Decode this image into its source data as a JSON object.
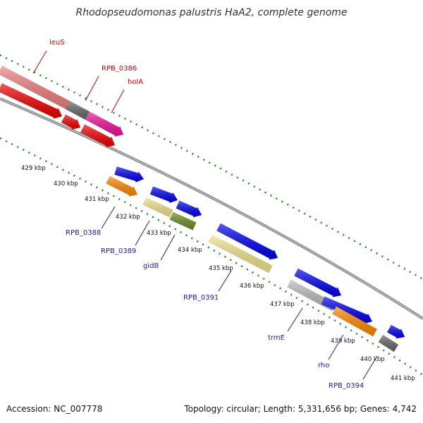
{
  "title": "Rhodopseudomonas palustris HaA2, complete genome",
  "footer": {
    "accession": "Accession: NC_007778",
    "topology": "Topology: circular; Length: 5,331,656 bp; Genes: 4,742"
  },
  "ticks": [
    "429 kbp",
    "430 kbp",
    "431 kbp",
    "432 kbp",
    "433 kbp",
    "434 kbp",
    "435 kbp",
    "436 kbp",
    "437 kbp",
    "438 kbp",
    "439 kbp",
    "440 kbp",
    "441 kbp"
  ],
  "gene_labels": {
    "top": [
      "leuS",
      "RPB_0386",
      "holA"
    ],
    "bottom": [
      "RPB_0388",
      "RPB_0389",
      "gidB",
      "RPB_0391",
      "trmE",
      "rho",
      "RPB_0394"
    ]
  },
  "colors": {
    "red": "#ee0000",
    "light_red": "#f08080",
    "magenta": "#ee1199",
    "dark_gray": "#666666",
    "blue": "#0000ee",
    "orange": "#ff8800",
    "pale_yellow": "#f0e68c",
    "olive": "#6b8e23",
    "light_gray": "#bbbbbb",
    "backbone": "#888888",
    "dots": "#228b22",
    "top_label": "#cc0000",
    "bottom_label": "#1a1aa6"
  }
}
